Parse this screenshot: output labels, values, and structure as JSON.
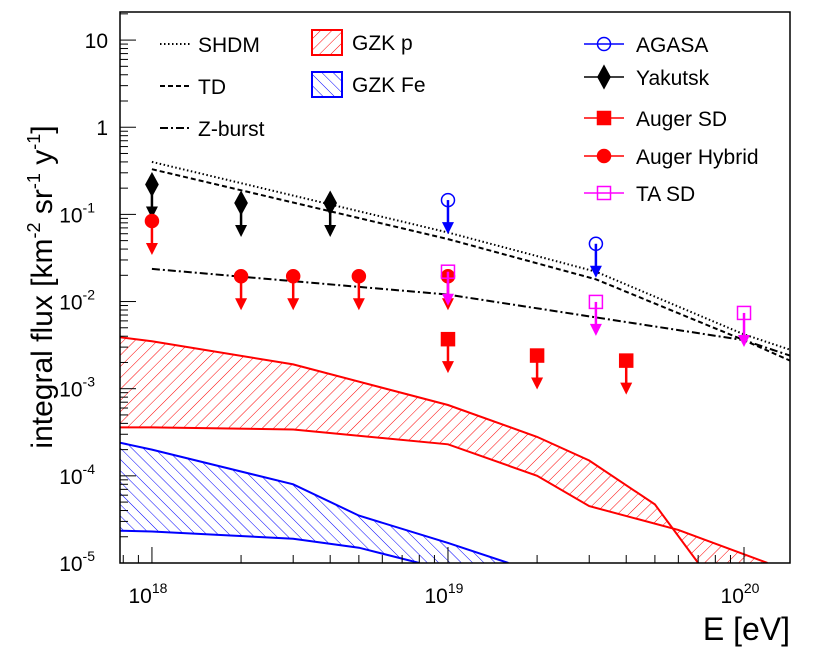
{
  "chart_data": {
    "type": "line",
    "xlabel": "E [eV]",
    "ylabel": [
      "integral flux [km",
      "-2",
      " sr",
      "-1",
      " y",
      "-1",
      "]"
    ],
    "log_x": true,
    "log_y": true,
    "xlim": [
      7.8e+17,
      1.43e+20
    ],
    "ylim": [
      1e-05,
      21
    ],
    "xticks": [
      {
        "value": 1e+18,
        "label": "10",
        "exponent": "18"
      },
      {
        "value": 1e+19,
        "label": "10",
        "exponent": "19"
      },
      {
        "value": 1e+20,
        "label": "10",
        "exponent": "20"
      }
    ],
    "yticks": [
      {
        "value": 1e-05,
        "label": "10",
        "exponent": "-5"
      },
      {
        "value": 0.0001,
        "label": "10",
        "exponent": "-4"
      },
      {
        "value": 0.001,
        "label": "10",
        "exponent": "-3"
      },
      {
        "value": 0.01,
        "label": "10",
        "exponent": "-2"
      },
      {
        "value": 0.1,
        "label": "10",
        "exponent": "-1"
      },
      1,
      10
    ],
    "series": [
      {
        "name": "SHDM",
        "color": "#000000",
        "style": "dotted",
        "x": [
          1e+18,
          1e+19,
          3.16e+19,
          1e+20,
          1.43e+20
        ],
        "values": [
          0.4,
          0.062,
          0.022,
          0.0042,
          0.0028
        ]
      },
      {
        "name": "TD",
        "color": "#000000",
        "style": "dashed",
        "x": [
          1e+18,
          1e+19,
          3.16e+19,
          1e+20,
          1.43e+20
        ],
        "values": [
          0.33,
          0.052,
          0.018,
          0.0036,
          0.0021
        ]
      },
      {
        "name": "Z-burst",
        "color": "#000000",
        "style": "dashdot",
        "x": [
          1e+18,
          1e+19,
          1e+20,
          1.43e+20
        ],
        "values": [
          0.0237,
          0.012,
          0.0036,
          0.0024
        ]
      }
    ],
    "bands": [
      {
        "name": "GZK p",
        "color": "#ff0000",
        "hatch": "forward",
        "upper": {
          "x": [
            7.8e+17,
            1e+18,
            3e+18,
            1e+19,
            2e+19,
            3e+19,
            5e+19,
            7e+19
          ],
          "values": [
            0.0039,
            0.0035,
            0.0019,
            0.00065,
            0.00028,
            0.00015,
            4.7e-05,
            1e-05
          ]
        },
        "lower": {
          "x": [
            7.8e+17,
            1e+18,
            3e+18,
            1e+19,
            2e+19,
            3e+19,
            6e+19,
            1.2e+20
          ],
          "values": [
            0.00036,
            0.00036,
            0.00034,
            0.00023,
            0.0001,
            4.5e-05,
            2.4e-05,
            1e-05
          ]
        }
      },
      {
        "name": "GZK Fe",
        "color": "#0000ff",
        "hatch": "backward",
        "upper": {
          "x": [
            7.8e+17,
            1e+18,
            3e+18,
            5e+18,
            1e+19,
            1.6e+19
          ],
          "values": [
            0.00024,
            0.0002,
            8e-05,
            3.5e-05,
            1.7e-05,
            1e-05
          ]
        },
        "lower": {
          "x": [
            7.8e+17,
            1e+18,
            3e+18,
            5e+18,
            8e+18
          ],
          "values": [
            2.35e-05,
            2.3e-05,
            1.9e-05,
            1.5e-05,
            1e-05
          ]
        }
      }
    ],
    "limits": [
      {
        "name": "AGASA",
        "color": "#0000ff",
        "marker": "open-circle",
        "x": [
          1e+19,
          3.16e+19
        ],
        "values": [
          0.146,
          0.046
        ]
      },
      {
        "name": "Yakutsk",
        "color": "#000000",
        "marker": "diamond",
        "x": [
          1e+18,
          2e+18,
          4e+18
        ],
        "values": [
          0.22,
          0.135,
          0.135
        ]
      },
      {
        "name": "Auger SD",
        "color": "#ff0000",
        "marker": "square",
        "x": [
          1e+19,
          2e+19,
          4e+19
        ],
        "values": [
          0.0037,
          0.0024,
          0.0021
        ]
      },
      {
        "name": "Auger Hybrid",
        "color": "#ff0000",
        "marker": "circle",
        "x": [
          1e+18,
          2e+18,
          3e+18,
          5e+18,
          1e+19
        ],
        "values": [
          0.084,
          0.0195,
          0.0195,
          0.0195,
          0.0195
        ]
      },
      {
        "name": "TA SD",
        "color": "#ff00ff",
        "marker": "open-square",
        "x": [
          1e+19,
          3.16e+19,
          1e+20
        ],
        "values": [
          0.022,
          0.0099,
          0.0074
        ]
      }
    ]
  }
}
